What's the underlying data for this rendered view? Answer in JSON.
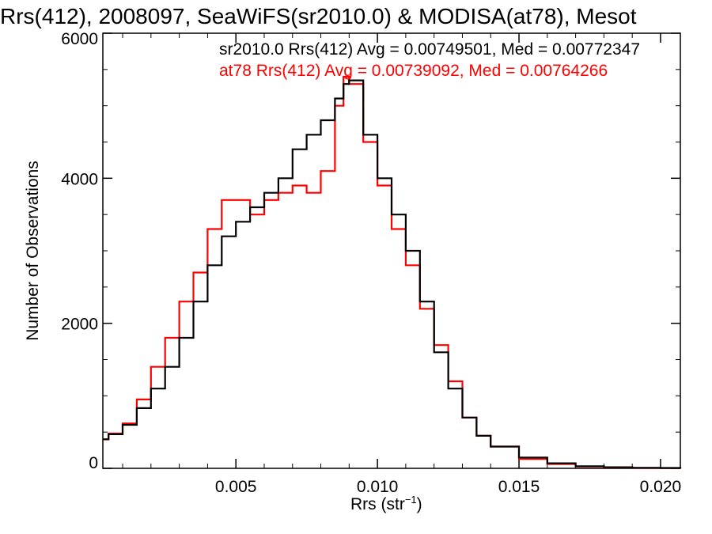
{
  "chart_data": {
    "type": "line",
    "title": "Rrs(412), 2008097, SeaWiFS(sr2010.0) & MODISA(at78), Mesot",
    "xlabel": "Rrs (str",
    "xlabel_exponent": "−1",
    "xlabel_close": ")",
    "ylabel": "Number of Observations",
    "xlim": [
      0.0003,
      0.0207
    ],
    "ylim": [
      0,
      6000
    ],
    "x_ticks": [
      0.005,
      0.01,
      0.015,
      0.02
    ],
    "x_tick_labels": [
      "0.005",
      "0.010",
      "0.015",
      "0.020"
    ],
    "y_ticks": [
      0,
      2000,
      4000,
      6000
    ],
    "y_tick_labels": [
      "0",
      "2000",
      "4000",
      "6000"
    ],
    "grid": false,
    "legend_position": "top-right",
    "series": [
      {
        "name": "sr2010.0",
        "legend_label": "sr2010.0 Rrs(412) Avg = 0.00749501, Med = 0.00772347",
        "color": "#000000",
        "x": [
          0.0003,
          0.0005,
          0.001,
          0.0015,
          0.002,
          0.0025,
          0.003,
          0.0035,
          0.004,
          0.0045,
          0.005,
          0.0055,
          0.006,
          0.0065,
          0.007,
          0.0075,
          0.008,
          0.0085,
          0.0088,
          0.009,
          0.0095,
          0.01,
          0.0105,
          0.011,
          0.0115,
          0.012,
          0.0125,
          0.013,
          0.0135,
          0.014,
          0.015,
          0.016,
          0.017,
          0.018,
          0.019,
          0.02,
          0.0207
        ],
        "y": [
          400,
          470,
          600,
          830,
          1100,
          1400,
          1800,
          2300,
          2800,
          3200,
          3400,
          3600,
          3800,
          4000,
          4400,
          4600,
          4800,
          5100,
          5300,
          5350,
          4600,
          4000,
          3500,
          3000,
          2300,
          1600,
          1100,
          700,
          450,
          300,
          150,
          70,
          30,
          15,
          8,
          5,
          0
        ]
      },
      {
        "name": "at78",
        "legend_label": "at78 Rrs(412) Avg = 0.00739092, Med = 0.00764266",
        "color": "#ff0000",
        "x": [
          0.0003,
          0.0005,
          0.001,
          0.0015,
          0.002,
          0.0025,
          0.003,
          0.0035,
          0.004,
          0.0045,
          0.005,
          0.0055,
          0.006,
          0.0065,
          0.007,
          0.0075,
          0.008,
          0.0085,
          0.0088,
          0.009,
          0.0095,
          0.01,
          0.0105,
          0.011,
          0.0115,
          0.012,
          0.0125,
          0.013,
          0.0135,
          0.014,
          0.015,
          0.016,
          0.017,
          0.018,
          0.019,
          0.02,
          0.0207
        ],
        "y": [
          400,
          480,
          620,
          950,
          1400,
          1800,
          2300,
          2700,
          3300,
          3700,
          3700,
          3500,
          3700,
          3800,
          3900,
          3800,
          4100,
          5000,
          5400,
          5300,
          4500,
          3900,
          3300,
          2800,
          2200,
          1700,
          1200,
          700,
          450,
          300,
          130,
          60,
          25,
          12,
          6,
          3,
          0
        ]
      }
    ]
  }
}
